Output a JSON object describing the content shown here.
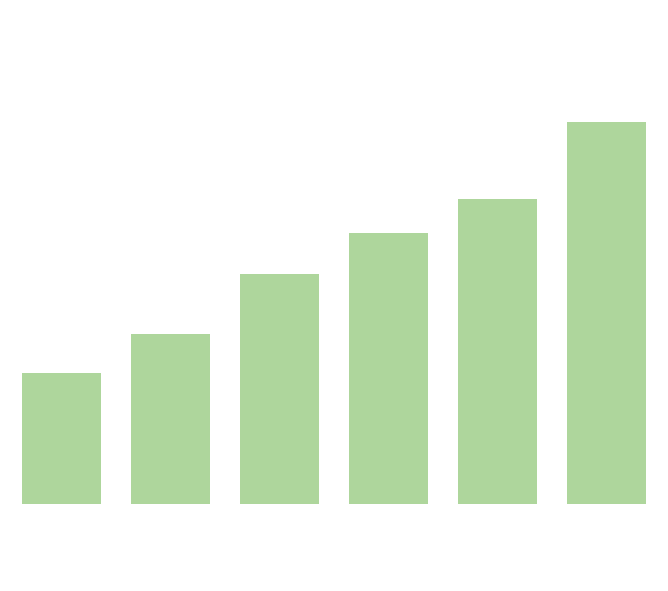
{
  "chart_data": {
    "type": "bar",
    "categories": [
      "",
      "",
      "",
      "",
      "",
      ""
    ],
    "values": [
      131,
      170,
      230,
      271,
      305,
      382
    ],
    "ylim": [
      0,
      400
    ],
    "grid": false,
    "legend": "none",
    "title": "",
    "xlabel": "",
    "ylabel": "",
    "color": "#aed69c"
  }
}
